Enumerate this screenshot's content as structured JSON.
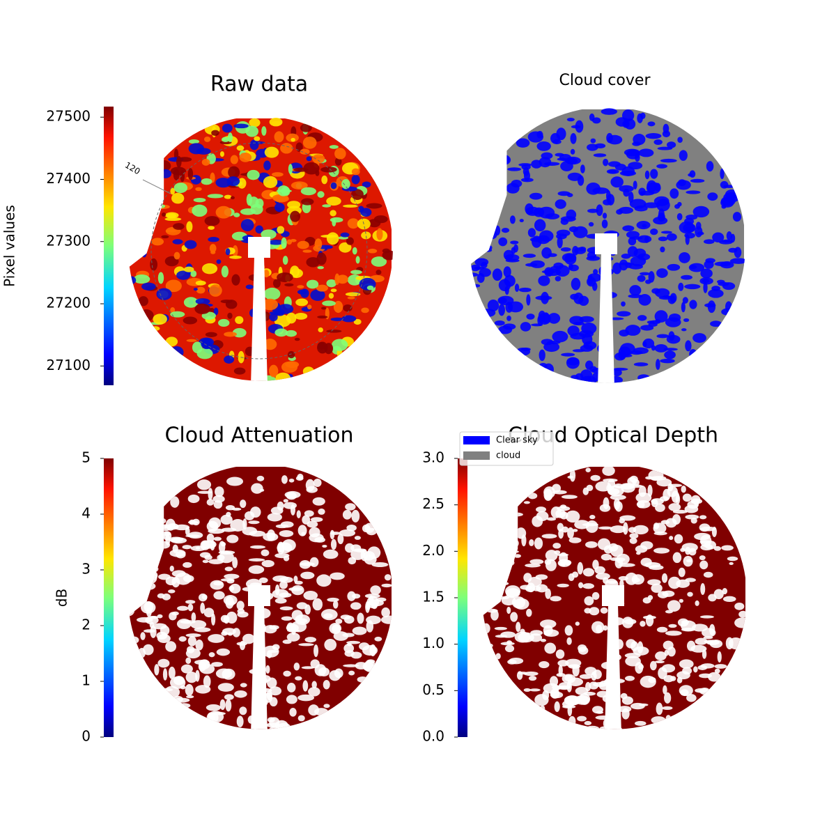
{
  "chart_data": [
    {
      "type": "image",
      "title": "Raw data",
      "colorbar_label": "Pixel values",
      "annotation": "120",
      "ylim": [
        27069,
        27517
      ],
      "yticks": [
        27100,
        27200,
        27300,
        27400,
        27500
      ],
      "colormap": "jet"
    },
    {
      "type": "image",
      "title": "Cloud cover",
      "series": [
        {
          "name": "Clear sky",
          "color": "#0000ff"
        },
        {
          "name": "cloud",
          "color": "#808080"
        }
      ]
    },
    {
      "type": "image",
      "title": "Cloud Attenuation",
      "colorbar_label": "dB",
      "ylim": [
        0,
        5
      ],
      "yticks": [
        0,
        1,
        2,
        3,
        4,
        5
      ],
      "colormap": "jet"
    },
    {
      "type": "image",
      "title": "Cloud Optical Depth",
      "ylim": [
        0,
        3
      ],
      "yticks": [
        {
          "value": 0,
          "label": "0.0"
        },
        {
          "value": 0.5,
          "label": "0.5"
        },
        {
          "value": 1,
          "label": "1.0"
        },
        {
          "value": 1.5,
          "label": "1.5"
        },
        {
          "value": 2,
          "label": "2.0"
        },
        {
          "value": 2.5,
          "label": "2.5"
        },
        {
          "value": 3,
          "label": "3.0"
        }
      ],
      "colormap": "jet"
    }
  ]
}
